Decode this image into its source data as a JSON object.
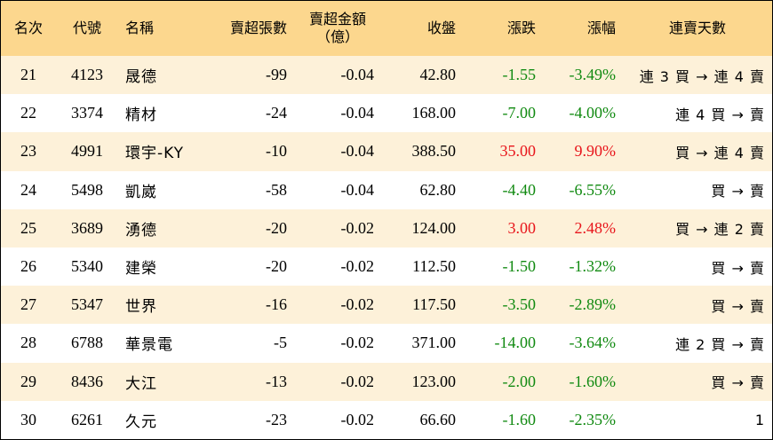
{
  "headers": {
    "rank": "名次",
    "code": "代號",
    "name": "名稱",
    "net_lots": "賣超張數",
    "net_amount_line1": "賣超金額",
    "net_amount_line2": "（億）",
    "close": "收盤",
    "change": "漲跌",
    "change_pct": "漲幅",
    "streak": "連賣天數"
  },
  "colors": {
    "header_bg": "#fcd78e",
    "stripe_bg": "#fdf1d9",
    "up": "#e8151b",
    "down": "#118a11"
  },
  "rows": [
    {
      "rank": "21",
      "code": "4123",
      "name": "晟德",
      "net_lots": "-99",
      "net_amount": "-0.04",
      "close": "42.80",
      "change": "-1.55",
      "change_pct": "-3.49%",
      "direction": "down",
      "streak": "連 3 買 → 連 4 賣"
    },
    {
      "rank": "22",
      "code": "3374",
      "name": "精材",
      "net_lots": "-24",
      "net_amount": "-0.04",
      "close": "168.00",
      "change": "-7.00",
      "change_pct": "-4.00%",
      "direction": "down",
      "streak": "連 4 買 → 賣"
    },
    {
      "rank": "23",
      "code": "4991",
      "name": "環宇-KY",
      "net_lots": "-10",
      "net_amount": "-0.04",
      "close": "388.50",
      "change": "35.00",
      "change_pct": "9.90%",
      "direction": "up",
      "streak": "買 → 連 4 賣"
    },
    {
      "rank": "24",
      "code": "5498",
      "name": "凱崴",
      "net_lots": "-58",
      "net_amount": "-0.04",
      "close": "62.80",
      "change": "-4.40",
      "change_pct": "-6.55%",
      "direction": "down",
      "streak": "買 → 賣"
    },
    {
      "rank": "25",
      "code": "3689",
      "name": "湧德",
      "net_lots": "-20",
      "net_amount": "-0.02",
      "close": "124.00",
      "change": "3.00",
      "change_pct": "2.48%",
      "direction": "up",
      "streak": "買 → 連 2 賣"
    },
    {
      "rank": "26",
      "code": "5340",
      "name": "建榮",
      "net_lots": "-20",
      "net_amount": "-0.02",
      "close": "112.50",
      "change": "-1.50",
      "change_pct": "-1.32%",
      "direction": "down",
      "streak": "買 → 賣"
    },
    {
      "rank": "27",
      "code": "5347",
      "name": "世界",
      "net_lots": "-16",
      "net_amount": "-0.02",
      "close": "117.50",
      "change": "-3.50",
      "change_pct": "-2.89%",
      "direction": "down",
      "streak": "買 → 賣"
    },
    {
      "rank": "28",
      "code": "6788",
      "name": "華景電",
      "net_lots": "-5",
      "net_amount": "-0.02",
      "close": "371.00",
      "change": "-14.00",
      "change_pct": "-3.64%",
      "direction": "down",
      "streak": "連 2 買 → 賣"
    },
    {
      "rank": "29",
      "code": "8436",
      "name": "大江",
      "net_lots": "-13",
      "net_amount": "-0.02",
      "close": "123.00",
      "change": "-2.00",
      "change_pct": "-1.60%",
      "direction": "down",
      "streak": "買 → 賣"
    },
    {
      "rank": "30",
      "code": "6261",
      "name": "久元",
      "net_lots": "-23",
      "net_amount": "-0.02",
      "close": "66.60",
      "change": "-1.60",
      "change_pct": "-2.35%",
      "direction": "down",
      "streak": "1"
    }
  ]
}
